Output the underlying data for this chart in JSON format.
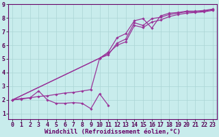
{
  "background_color": "#c8ecec",
  "grid_color": "#aad4d4",
  "line_color": "#993399",
  "marker_color": "#993399",
  "xlabel": "Windchill (Refroidissement éolien,°C)",
  "xlim": [
    -0.5,
    23.5
  ],
  "ylim": [
    0.6,
    9.0
  ],
  "xticks": [
    0,
    1,
    2,
    3,
    4,
    5,
    6,
    7,
    8,
    9,
    10,
    11,
    12,
    13,
    14,
    15,
    16,
    17,
    18,
    19,
    20,
    21,
    22,
    23
  ],
  "yticks": [
    1,
    2,
    3,
    4,
    5,
    6,
    7,
    8,
    9
  ],
  "series1_x": [
    0,
    1,
    2,
    3,
    4,
    5,
    6,
    7,
    8,
    9,
    10,
    11
  ],
  "series1_y": [
    2.0,
    2.1,
    2.15,
    2.65,
    2.0,
    1.75,
    1.75,
    1.8,
    1.75,
    1.35,
    2.45,
    1.6
  ],
  "series2_x": [
    0,
    1,
    2,
    3,
    4,
    5,
    6,
    7,
    8,
    9,
    10,
    11,
    12,
    13,
    14,
    15,
    16,
    17,
    18,
    19,
    20,
    21,
    22,
    23
  ],
  "series2_y": [
    2.0,
    2.05,
    2.15,
    2.25,
    2.3,
    2.4,
    2.5,
    2.55,
    2.65,
    2.75,
    5.05,
    5.5,
    6.55,
    6.85,
    7.8,
    7.95,
    7.25,
    8.15,
    8.35,
    8.4,
    8.5,
    8.5,
    8.55,
    8.65
  ],
  "series3_x": [
    0,
    10,
    11,
    12,
    13,
    14,
    15,
    16,
    17,
    18,
    19,
    20,
    21,
    22,
    23
  ],
  "series3_y": [
    2.0,
    5.05,
    5.3,
    6.15,
    6.45,
    7.65,
    7.45,
    7.95,
    8.05,
    8.25,
    8.35,
    8.45,
    8.45,
    8.5,
    8.6
  ],
  "series4_x": [
    0,
    10,
    11,
    12,
    13,
    14,
    15,
    16,
    17,
    18,
    19,
    20,
    21,
    22,
    23
  ],
  "series4_y": [
    2.0,
    5.05,
    5.4,
    6.0,
    6.25,
    7.45,
    7.3,
    7.7,
    7.85,
    8.1,
    8.25,
    8.35,
    8.4,
    8.45,
    8.55
  ],
  "font_size_label": 6.5,
  "font_size_tick": 6.0
}
